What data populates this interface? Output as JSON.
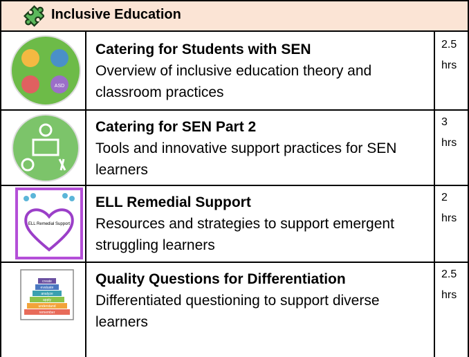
{
  "header": {
    "title": "Inclusive Education"
  },
  "courses": [
    {
      "title": "Catering for Students with SEN",
      "description": "Overview of inclusive education theory and classroom practices",
      "hours": "2.5",
      "unit": "hrs",
      "icon_label": "ASD"
    },
    {
      "title": "Catering for SEN Part 2",
      "description": "Tools and innovative support practices for SEN learners",
      "hours": "3",
      "unit": "hrs"
    },
    {
      "title": "ELL Remedial Support",
      "description": "Resources and strategies to support emergent struggling learners",
      "hours": "2",
      "unit": "hrs",
      "icon_label": "ELL Remedial Support"
    },
    {
      "title": "Quality Questions for Differentiation",
      "description": "Differentiated questioning to support diverse learners",
      "hours": "2.5",
      "unit": "hrs",
      "icon_levels": [
        "create",
        "evaluate",
        "analyze",
        "apply",
        "understand",
        "remember"
      ]
    }
  ]
}
